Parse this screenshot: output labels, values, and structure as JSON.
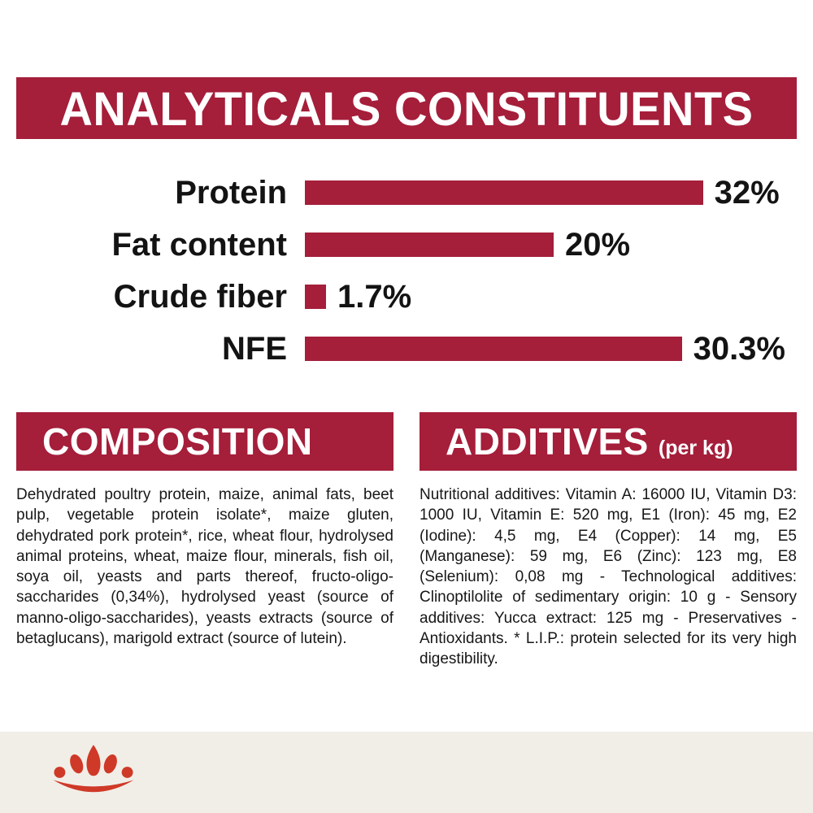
{
  "header": {
    "title": "ANALYTICALS CONSTITUENTS"
  },
  "chart_data": {
    "type": "bar",
    "orientation": "horizontal",
    "title": "ANALYTICALS CONSTITUENTS",
    "categories": [
      "Protein",
      "Fat content",
      "Crude fiber",
      "NFE"
    ],
    "values": [
      32,
      20,
      1.7,
      30.3
    ],
    "value_labels": [
      "32%",
      "20%",
      "1.7%",
      "30.3%"
    ],
    "xlabel": "",
    "ylabel": "",
    "xlim": [
      0,
      39
    ],
    "grid": false,
    "legend": "none",
    "bar_color": "#a51e3a"
  },
  "composition": {
    "title": "COMPOSITION",
    "body": "Dehydrated poultry protein, maize, animal fats, beet pulp, vegetable protein isolate*, maize gluten, dehydrated pork protein*, rice, wheat flour, hydrolysed animal proteins, wheat, maize flour, minerals, fish oil, soya oil, yeasts and parts thereof, fructo-oligo-saccharides (0,34%), hydrolysed yeast (source of manno-oligo-saccharides), yeasts extracts (source of betaglucans), marigold extract (source of lutein)."
  },
  "additives": {
    "title": "ADDITIVES",
    "unit": "(per kg)",
    "body": "Nutritional additives: Vitamin A: 16000 IU, Vitamin D3: 1000 IU, Vitamin E: 520 mg, E1 (Iron): 45 mg, E2 (Iodine): 4,5 mg, E4 (Copper): 14 mg, E5 (Manganese): 59 mg, E6 (Zinc): 123 mg, E8 (Selenium): 0,08 mg - Technological additives: Clinoptilolite of sedimentary origin: 10 g - Sensory additives: Yucca extract: 125 mg - Preservatives - Antioxidants. * L.I.P.: protein selected for its very high digestibility."
  },
  "footer": {
    "logo": "royal-canin-crown-logo"
  },
  "colors": {
    "accent": "#a51e3a",
    "logo_red": "#cf3928",
    "footer_bg": "#f1eee7"
  }
}
